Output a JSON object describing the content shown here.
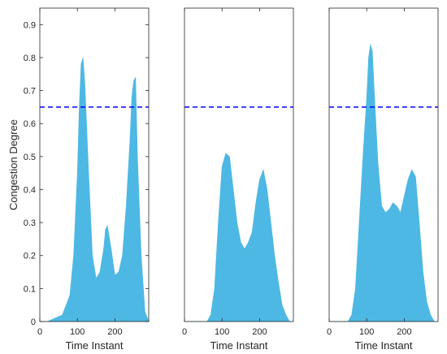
{
  "chart_data": [
    {
      "type": "area",
      "xlabel": "Time Instant",
      "ylabel": "Congestion Degree",
      "xlim": [
        0,
        290
      ],
      "ylim": [
        0,
        0.95
      ],
      "xticks": [
        0,
        100,
        200
      ],
      "yticks": [
        0,
        0.1,
        0.2,
        0.3,
        0.4,
        0.5,
        0.6,
        0.7,
        0.8,
        0.9
      ],
      "threshold": 0.65,
      "fill_color": "#4db8e3",
      "threshold_color": "#0000ff",
      "x": [
        0,
        20,
        40,
        60,
        80,
        90,
        100,
        105,
        110,
        115,
        120,
        130,
        140,
        150,
        160,
        170,
        175,
        180,
        190,
        200,
        210,
        220,
        230,
        240,
        245,
        250,
        255,
        260,
        270,
        280,
        290
      ],
      "y": [
        0,
        0,
        0.01,
        0.02,
        0.08,
        0.2,
        0.45,
        0.65,
        0.78,
        0.8,
        0.72,
        0.45,
        0.2,
        0.13,
        0.15,
        0.22,
        0.28,
        0.29,
        0.22,
        0.14,
        0.15,
        0.2,
        0.35,
        0.55,
        0.68,
        0.73,
        0.74,
        0.5,
        0.2,
        0.03,
        0
      ]
    },
    {
      "type": "area",
      "xlabel": "Time Instant",
      "ylabel": "",
      "xlim": [
        0,
        290
      ],
      "ylim": [
        0,
        0.95
      ],
      "xticks": [
        0,
        100,
        200
      ],
      "yticks": [],
      "threshold": 0.65,
      "fill_color": "#4db8e3",
      "threshold_color": "#0000ff",
      "x": [
        0,
        60,
        70,
        80,
        90,
        100,
        110,
        120,
        130,
        140,
        150,
        160,
        170,
        180,
        190,
        200,
        210,
        220,
        230,
        240,
        250,
        260,
        270,
        280,
        290
      ],
      "y": [
        0,
        0,
        0.02,
        0.1,
        0.3,
        0.47,
        0.51,
        0.5,
        0.4,
        0.3,
        0.24,
        0.22,
        0.24,
        0.27,
        0.36,
        0.43,
        0.46,
        0.4,
        0.3,
        0.2,
        0.12,
        0.05,
        0.02,
        0,
        0
      ]
    },
    {
      "type": "area",
      "xlabel": "Time Instant",
      "ylabel": "",
      "xlim": [
        0,
        290
      ],
      "ylim": [
        0,
        0.95
      ],
      "xticks": [
        0,
        100,
        200
      ],
      "yticks": [],
      "threshold": 0.65,
      "fill_color": "#4db8e3",
      "threshold_color": "#0000ff",
      "x": [
        0,
        50,
        60,
        70,
        80,
        90,
        100,
        105,
        110,
        115,
        120,
        130,
        140,
        150,
        160,
        170,
        180,
        190,
        200,
        210,
        220,
        230,
        240,
        250,
        260,
        270,
        280,
        290
      ],
      "y": [
        0,
        0,
        0.02,
        0.1,
        0.3,
        0.5,
        0.68,
        0.8,
        0.84,
        0.82,
        0.7,
        0.48,
        0.35,
        0.33,
        0.34,
        0.36,
        0.35,
        0.33,
        0.38,
        0.43,
        0.46,
        0.44,
        0.3,
        0.15,
        0.06,
        0.02,
        0,
        0
      ]
    }
  ]
}
